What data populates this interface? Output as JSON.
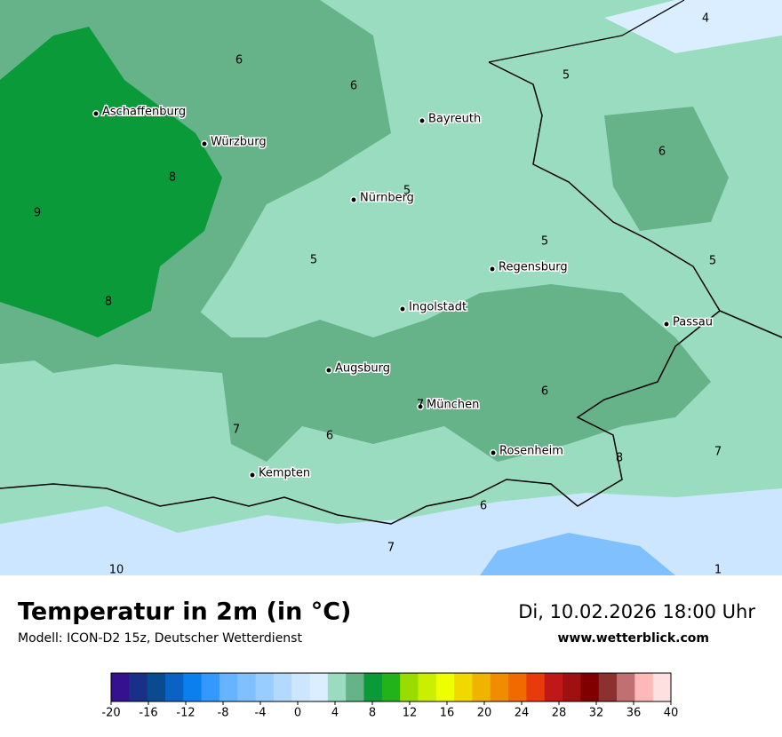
{
  "map": {
    "cities": [
      "Aschaffenburg",
      "Würzburg",
      "Bayreuth",
      "Nürnberg",
      "Regensburg",
      "Ingolstadt",
      "Passau",
      "Augsburg",
      "München",
      "Rosenheim",
      "Kempten"
    ],
    "contour_labels": [
      4,
      6,
      6,
      5,
      6,
      8,
      9,
      5,
      5,
      5,
      5,
      8,
      6,
      7,
      7,
      6,
      8,
      7,
      6,
      7,
      10,
      1
    ]
  },
  "footer": {
    "title": "Temperatur in 2m (in °C)",
    "subtitle": "Modell: ICON-D2 15z, Deutscher Wetterdienst",
    "datetime": "Di, 10.02.2026 18:00 Uhr",
    "website": "www.wetterblick.com"
  },
  "legend": {
    "ticks": [
      -20,
      -16,
      -12,
      -8,
      -4,
      0,
      4,
      8,
      12,
      16,
      20,
      24,
      28,
      32,
      36,
      40
    ],
    "colors": [
      "#35108f",
      "#1a3088",
      "#0a4a91",
      "#0a62c4",
      "#0a80ee",
      "#3399ff",
      "#66b3ff",
      "#80c0ff",
      "#99ccff",
      "#b3d9ff",
      "#cce6ff",
      "#dbeeff",
      "#99dcc0",
      "#66b38a",
      "#0a9a3a",
      "#22b31a",
      "#99dd00",
      "#ccee00",
      "#eeff00",
      "#f0d800",
      "#f0b400",
      "#f08c00",
      "#f06a00",
      "#e83a0a",
      "#c01818",
      "#a01010",
      "#800000",
      "#8c3030",
      "#c07070",
      "#ffb8b8",
      "#ffe0e0"
    ]
  }
}
